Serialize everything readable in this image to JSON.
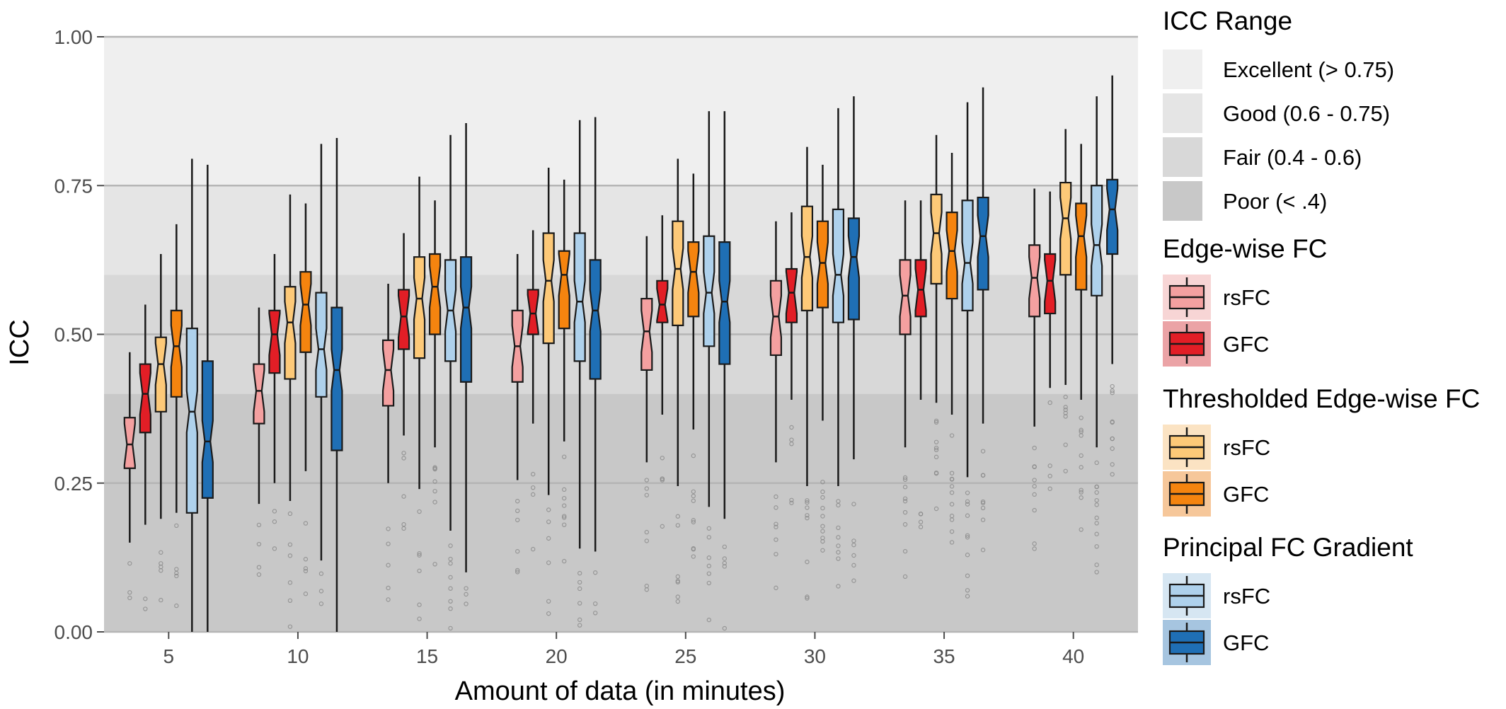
{
  "chart_data": {
    "type": "boxplot",
    "title": "",
    "xlabel": "Amount of data (in minutes)",
    "ylabel": "ICC",
    "ylim": [
      0,
      1
    ],
    "y_ticks": [
      "0.00",
      "0.25",
      "0.50",
      "0.75",
      "1.00"
    ],
    "y_tick_values": [
      0,
      0.25,
      0.5,
      0.75,
      1.0
    ],
    "categories": [
      "5",
      "10",
      "15",
      "20",
      "25",
      "30",
      "35",
      "40"
    ],
    "grid": true,
    "legend_placement": "right",
    "background_bands": {
      "title": "ICC Range",
      "bands": [
        {
          "label": "Excellent (> 0.75)",
          "from": 0.75,
          "to": 1.0,
          "color": "#efefef"
        },
        {
          "label": "Good (0.6 - 0.75)",
          "from": 0.6,
          "to": 0.75,
          "color": "#e5e5e5"
        },
        {
          "label": "Fair (0.4 - 0.6)",
          "from": 0.4,
          "to": 0.6,
          "color": "#d8d8d8"
        },
        {
          "label": "Poor (< .4)",
          "from": 0.0,
          "to": 0.4,
          "color": "#c8c8c8"
        }
      ]
    },
    "legend_groups": [
      {
        "title": "Edge-wise FC",
        "items": [
          {
            "label": "rsFC",
            "series": 0,
            "fill": "#f4a0a0",
            "bg": "#f7d5d5"
          },
          {
            "label": "GFC",
            "series": 1,
            "fill": "#e21e26",
            "bg": "#eba3a6"
          }
        ]
      },
      {
        "title": "Thresholded Edge-wise FC",
        "items": [
          {
            "label": "rsFC",
            "series": 2,
            "fill": "#fdc978",
            "bg": "#fbe3c3"
          },
          {
            "label": "GFC",
            "series": 3,
            "fill": "#f5840f",
            "bg": "#f6c79a"
          }
        ]
      },
      {
        "title": "Principal FC Gradient",
        "items": [
          {
            "label": "rsFC",
            "series": 4,
            "fill": "#aed1ec",
            "bg": "#d6e6f2"
          },
          {
            "label": "GFC",
            "series": 5,
            "fill": "#1f6fb5",
            "bg": "#a6c5e0"
          }
        ]
      }
    ],
    "series": [
      {
        "name": "Edge-wise FC rsFC",
        "color": "#f4a0a0",
        "boxes": [
          [
            0.15,
            0.275,
            0.315,
            0.36,
            0.47
          ],
          [
            0.215,
            0.35,
            0.405,
            0.45,
            0.545
          ],
          [
            0.25,
            0.38,
            0.44,
            0.49,
            0.585
          ],
          [
            0.255,
            0.42,
            0.48,
            0.54,
            0.635
          ],
          [
            0.285,
            0.44,
            0.505,
            0.56,
            0.665
          ],
          [
            0.285,
            0.465,
            0.53,
            0.59,
            0.69
          ],
          [
            0.31,
            0.5,
            0.565,
            0.625,
            0.725
          ],
          [
            0.345,
            0.53,
            0.595,
            0.65,
            0.745
          ]
        ]
      },
      {
        "name": "Edge-wise FC GFC",
        "color": "#e21e26",
        "boxes": [
          [
            0.18,
            0.335,
            0.4,
            0.45,
            0.55
          ],
          [
            0.25,
            0.435,
            0.5,
            0.54,
            0.635
          ],
          [
            0.33,
            0.475,
            0.53,
            0.575,
            0.67
          ],
          [
            0.35,
            0.5,
            0.535,
            0.575,
            0.675
          ],
          [
            0.365,
            0.52,
            0.55,
            0.59,
            0.7
          ],
          [
            0.39,
            0.52,
            0.57,
            0.61,
            0.705
          ],
          [
            0.39,
            0.53,
            0.575,
            0.625,
            0.725
          ],
          [
            0.41,
            0.535,
            0.59,
            0.635,
            0.74
          ]
        ]
      },
      {
        "name": "Thresholded Edge-wise FC rsFC",
        "color": "#fdc978",
        "boxes": [
          [
            0.19,
            0.37,
            0.45,
            0.495,
            0.635
          ],
          [
            0.22,
            0.425,
            0.52,
            0.58,
            0.735
          ],
          [
            0.24,
            0.46,
            0.56,
            0.63,
            0.765
          ],
          [
            0.23,
            0.485,
            0.59,
            0.67,
            0.78
          ],
          [
            0.245,
            0.515,
            0.61,
            0.69,
            0.795
          ],
          [
            0.245,
            0.54,
            0.63,
            0.715,
            0.815
          ],
          [
            0.385,
            0.585,
            0.67,
            0.735,
            0.835
          ],
          [
            0.415,
            0.6,
            0.695,
            0.755,
            0.845
          ]
        ]
      },
      {
        "name": "Thresholded Edge-wise FC GFC",
        "color": "#f5840f",
        "boxes": [
          [
            0.2,
            0.395,
            0.48,
            0.54,
            0.685
          ],
          [
            0.27,
            0.47,
            0.55,
            0.605,
            0.72
          ],
          [
            0.31,
            0.5,
            0.58,
            0.635,
            0.725
          ],
          [
            0.32,
            0.51,
            0.6,
            0.64,
            0.76
          ],
          [
            0.34,
            0.53,
            0.605,
            0.655,
            0.77
          ],
          [
            0.355,
            0.545,
            0.62,
            0.69,
            0.785
          ],
          [
            0.365,
            0.56,
            0.64,
            0.705,
            0.805
          ],
          [
            0.39,
            0.575,
            0.665,
            0.72,
            0.82
          ]
        ]
      },
      {
        "name": "Principal FC Gradient rsFC",
        "color": "#aed1ec",
        "boxes": [
          [
            0.0,
            0.2,
            0.37,
            0.51,
            0.795
          ],
          [
            0.12,
            0.395,
            0.475,
            0.57,
            0.82
          ],
          [
            0.17,
            0.455,
            0.54,
            0.625,
            0.835
          ],
          [
            0.14,
            0.455,
            0.555,
            0.67,
            0.86
          ],
          [
            0.21,
            0.48,
            0.57,
            0.665,
            0.875
          ],
          [
            0.245,
            0.52,
            0.6,
            0.71,
            0.88
          ],
          [
            0.26,
            0.54,
            0.62,
            0.725,
            0.89
          ],
          [
            0.31,
            0.565,
            0.65,
            0.75,
            0.9
          ]
        ]
      },
      {
        "name": "Principal FC Gradient GFC",
        "color": "#1f6fb5",
        "boxes": [
          [
            0.0,
            0.225,
            0.32,
            0.455,
            0.785
          ],
          [
            0.0,
            0.305,
            0.44,
            0.545,
            0.83
          ],
          [
            0.1,
            0.42,
            0.545,
            0.63,
            0.855
          ],
          [
            0.135,
            0.425,
            0.54,
            0.625,
            0.865
          ],
          [
            0.19,
            0.45,
            0.555,
            0.655,
            0.875
          ],
          [
            0.29,
            0.525,
            0.63,
            0.695,
            0.9
          ],
          [
            0.35,
            0.575,
            0.665,
            0.73,
            0.915
          ],
          [
            0.45,
            0.635,
            0.71,
            0.76,
            0.935
          ]
        ]
      }
    ],
    "outlier_counts": [
      [
        3,
        4,
        5,
        6,
        7,
        7,
        9,
        9
      ],
      [
        2,
        3,
        5,
        4,
        5,
        5,
        4,
        4
      ],
      [
        5,
        6,
        6,
        6,
        7,
        8,
        9,
        7
      ],
      [
        5,
        5,
        7,
        8,
        9,
        10,
        11,
        10
      ],
      [
        0,
        3,
        8,
        6,
        7,
        8,
        10,
        12
      ],
      [
        0,
        2,
        3,
        3,
        5,
        6,
        8,
        10
      ]
    ]
  }
}
